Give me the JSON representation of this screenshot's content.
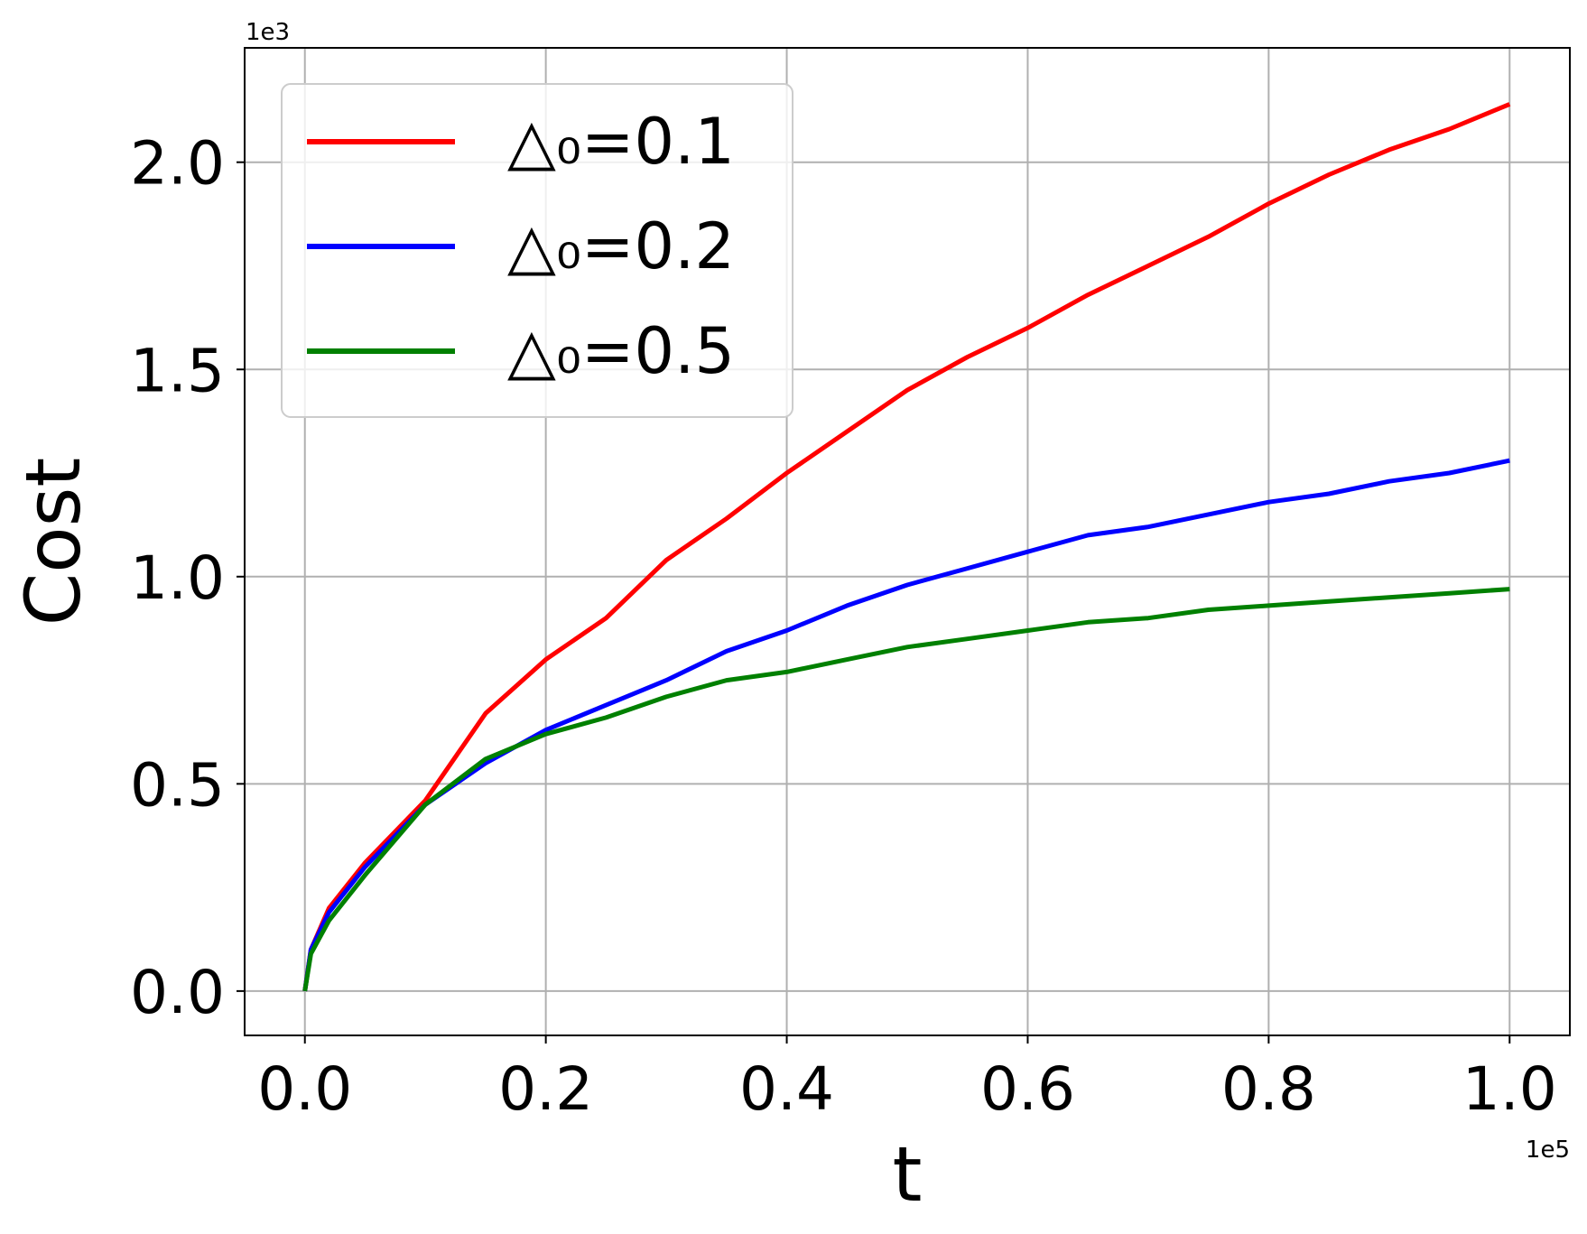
{
  "chart_data": {
    "type": "line",
    "xlabel": "t",
    "ylabel": "Cost",
    "x_multiplier": "1e5",
    "y_multiplier": "1e3",
    "x": [
      0,
      0.005,
      0.02,
      0.05,
      0.1,
      0.15,
      0.2,
      0.25,
      0.3,
      0.35,
      0.4,
      0.45,
      0.5,
      0.55,
      0.6,
      0.65,
      0.7,
      0.75,
      0.8,
      0.85,
      0.9,
      0.95,
      1.0
    ],
    "series": [
      {
        "name": "△₀=0.1",
        "color": "#ff0000",
        "values": [
          0,
          0.1,
          0.2,
          0.31,
          0.46,
          0.67,
          0.8,
          0.9,
          1.04,
          1.14,
          1.25,
          1.35,
          1.45,
          1.53,
          1.6,
          1.68,
          1.75,
          1.82,
          1.9,
          1.97,
          2.03,
          2.08,
          2.14
        ]
      },
      {
        "name": "△₀=0.2",
        "color": "#0000ff",
        "values": [
          0,
          0.1,
          0.19,
          0.3,
          0.45,
          0.55,
          0.63,
          0.69,
          0.75,
          0.82,
          0.87,
          0.93,
          0.98,
          1.02,
          1.06,
          1.1,
          1.12,
          1.15,
          1.18,
          1.2,
          1.23,
          1.25,
          1.28
        ]
      },
      {
        "name": "△₀=0.5",
        "color": "#008000",
        "values": [
          0,
          0.09,
          0.17,
          0.28,
          0.45,
          0.56,
          0.62,
          0.66,
          0.71,
          0.75,
          0.77,
          0.8,
          0.83,
          0.85,
          0.87,
          0.89,
          0.9,
          0.92,
          0.93,
          0.94,
          0.95,
          0.96,
          0.97
        ]
      }
    ],
    "xlim": [
      -0.05,
      1.05
    ],
    "ylim": [
      -0.107,
      2.276
    ],
    "xticks": [
      {
        "value": 0,
        "label": "0.0"
      },
      0.2,
      0.4,
      0.6,
      0.8,
      {
        "value": 1,
        "label": "1.0"
      }
    ],
    "yticks": [
      {
        "value": 0,
        "label": "0.0"
      },
      0.5,
      {
        "value": 1,
        "label": "1.0"
      },
      1.5,
      {
        "value": 2,
        "label": "2.0"
      }
    ],
    "grid": true,
    "legend": "upper left"
  }
}
